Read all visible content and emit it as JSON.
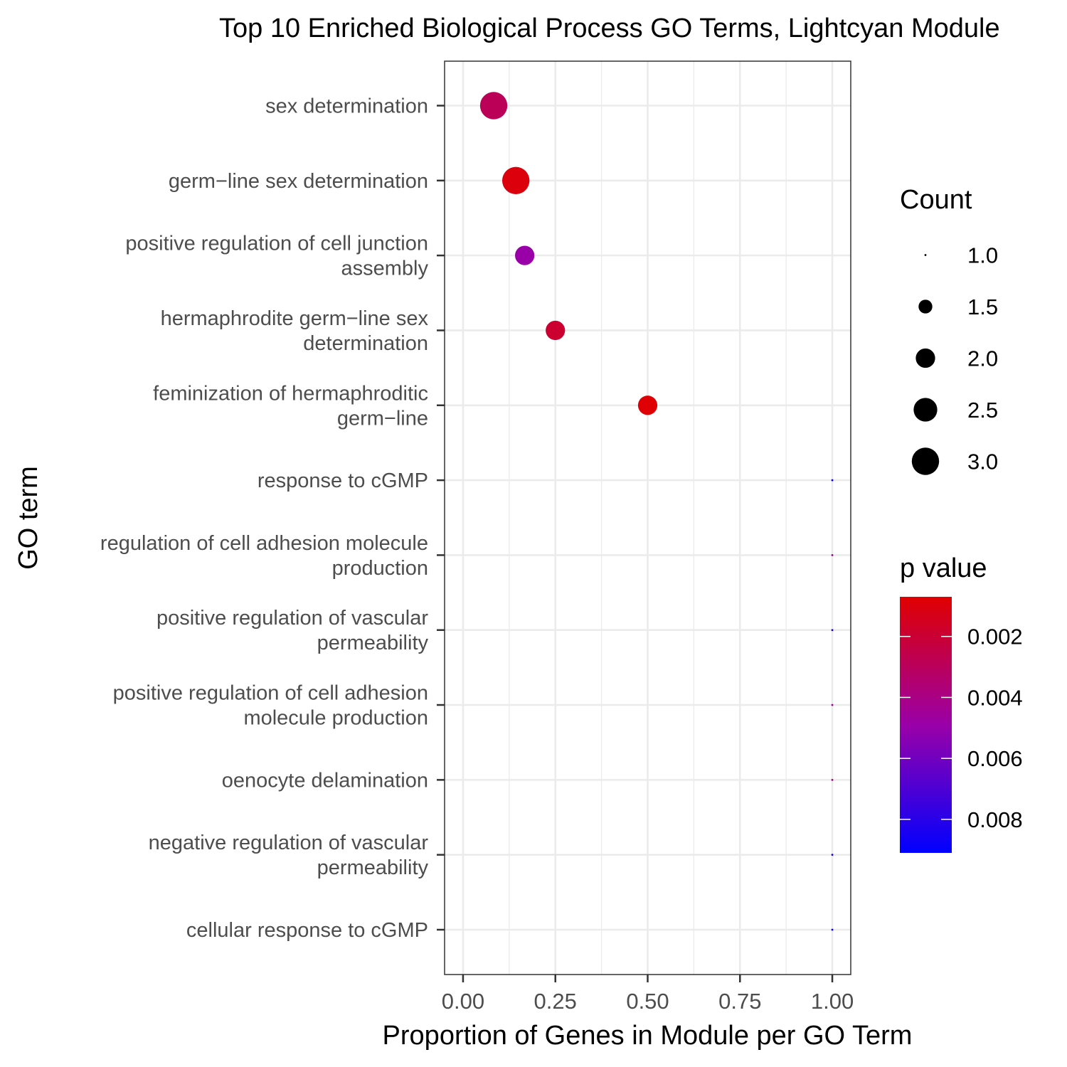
{
  "chart_data": {
    "type": "scatter",
    "title": "Top 10 Enriched Biological Process GO Terms, Lightcyan Module",
    "xlabel": "Proportion of Genes in Module per GO Term",
    "ylabel": "GO term",
    "xlim": [
      -0.05,
      1.05
    ],
    "x_ticks": [
      "0.00",
      "0.25",
      "0.50",
      "0.75",
      "1.00"
    ],
    "x_tick_values": [
      0,
      0.25,
      0.5,
      0.75,
      1.0
    ],
    "grid": true,
    "points": [
      {
        "term": "sex determination",
        "x": 0.083,
        "count": 3,
        "p": 0.0029
      },
      {
        "term": "germ−line sex determination",
        "x": 0.143,
        "count": 3,
        "p": 0.001
      },
      {
        "term": "positive regulation of cell junction assembly",
        "x": 0.167,
        "count": 2,
        "p": 0.0049
      },
      {
        "term": "hermaphrodite germ−line sex determination",
        "x": 0.25,
        "count": 2,
        "p": 0.0019
      },
      {
        "term": "feminization of hermaphroditic germ−line",
        "x": 0.5,
        "count": 2,
        "p": 0.0008
      },
      {
        "term": "response to cGMP",
        "x": 1.0,
        "count": 1,
        "p": 0.0088
      },
      {
        "term": "regulation of cell adhesion molecule production",
        "x": 1.0,
        "count": 1,
        "p": 0.0046
      },
      {
        "term": "positive regulation of vascular permeability",
        "x": 1.0,
        "count": 1,
        "p": 0.0085
      },
      {
        "term": "positive regulation of cell adhesion molecule production",
        "x": 1.0,
        "count": 1,
        "p": 0.0046
      },
      {
        "term": "oenocyte delamination",
        "x": 1.0,
        "count": 1,
        "p": 0.0041
      },
      {
        "term": "negative regulation of vascular permeability",
        "x": 1.0,
        "count": 1,
        "p": 0.0085
      },
      {
        "term": "cellular response to cGMP",
        "x": 1.0,
        "count": 1,
        "p": 0.0088
      }
    ],
    "y_labels": [
      [
        "sex determination"
      ],
      [
        "germ−line sex determination"
      ],
      [
        "positive regulation of cell junction",
        "assembly"
      ],
      [
        "hermaphrodite germ−line sex",
        "determination"
      ],
      [
        "feminization of hermaphroditic",
        "germ−line"
      ],
      [
        "response to cGMP"
      ],
      [
        "regulation of cell adhesion molecule",
        "production"
      ],
      [
        "positive regulation of vascular",
        "permeability"
      ],
      [
        "positive regulation of cell adhesion",
        "molecule production"
      ],
      [
        "oenocyte delamination"
      ],
      [
        "negative regulation of vascular",
        "permeability"
      ],
      [
        "cellular response to cGMP"
      ]
    ],
    "size_legend": {
      "title": "Count",
      "values": [
        1.0,
        1.5,
        2.0,
        2.5,
        3.0
      ],
      "labels": [
        "1.0",
        "1.5",
        "2.0",
        "2.5",
        "3.0"
      ]
    },
    "color_legend": {
      "title": "p value",
      "range": [
        0.0007,
        0.0091
      ],
      "ticks": [
        0.002,
        0.004,
        0.006,
        0.008
      ],
      "labels": [
        "0.002",
        "0.004",
        "0.006",
        "0.008"
      ],
      "low_color": "#e00000",
      "high_color": "#0000ff"
    },
    "legend_position": "right"
  }
}
